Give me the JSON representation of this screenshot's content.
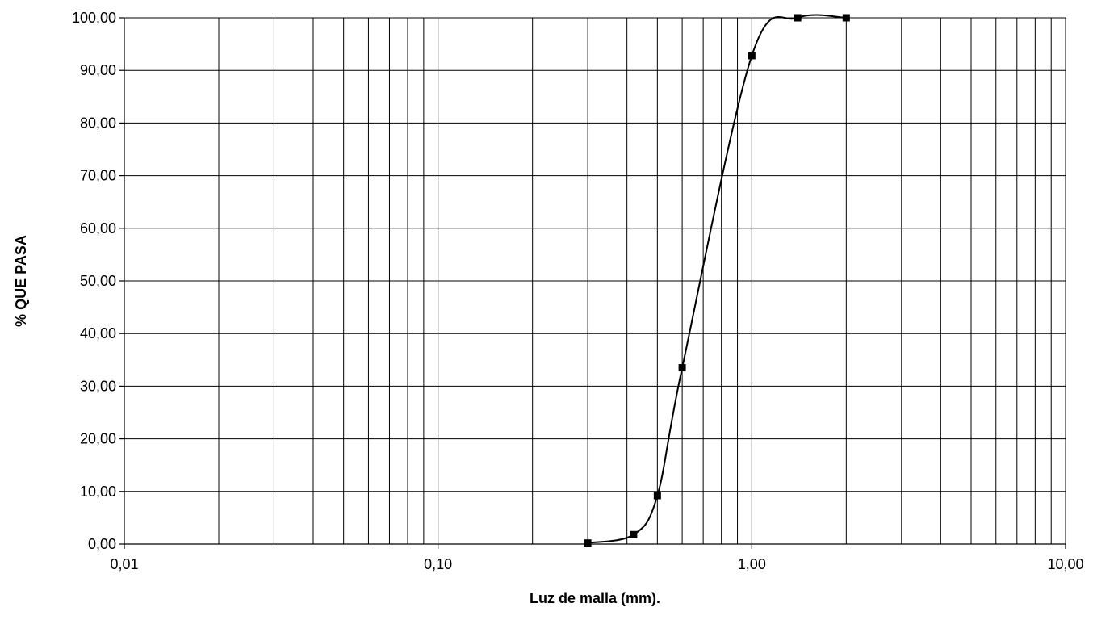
{
  "chart_data": {
    "type": "line",
    "title": "",
    "xlabel": "Luz de malla (mm).",
    "ylabel": "%  QUE PASA",
    "x_scale": "log",
    "xlim": [
      0.01,
      10
    ],
    "ylim": [
      0,
      100
    ],
    "grid": true,
    "x_major_ticks": [
      0.01,
      0.1,
      1,
      10
    ],
    "x_tick_labels": [
      "0,01",
      "0,10",
      "1,00",
      "10,00"
    ],
    "y_ticks": [
      0,
      10,
      20,
      30,
      40,
      50,
      60,
      70,
      80,
      90,
      100
    ],
    "y_tick_labels": [
      "0,00",
      "10,00",
      "20,00",
      "30,00",
      "40,00",
      "50,00",
      "60,00",
      "70,00",
      "80,00",
      "90,00",
      "100,00"
    ],
    "series": [
      {
        "smooth": true,
        "marker": "square",
        "color": "#000000",
        "x": [
          0.3,
          0.42,
          0.5,
          0.6,
          1.0,
          1.4,
          2.0
        ],
        "y": [
          0.2,
          1.8,
          9.2,
          33.5,
          92.8,
          100,
          100
        ]
      }
    ]
  }
}
